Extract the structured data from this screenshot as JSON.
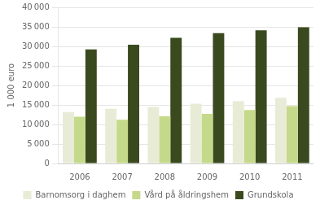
{
  "chart_data": {
    "type": "bar",
    "ylabel": "1 000 euro",
    "categories": [
      "2006",
      "2007",
      "2008",
      "2009",
      "2010",
      "2011"
    ],
    "series": [
      {
        "name": "Barnomsorg i daghem",
        "color": "#e8ecd6",
        "values": [
          13200,
          14000,
          14500,
          15300,
          16000,
          16800
        ]
      },
      {
        "name": "Vård på åldringshem",
        "color": "#c5d98a",
        "values": [
          12000,
          11200,
          12100,
          12700,
          13700,
          14700
        ]
      },
      {
        "name": "Grundskola",
        "color": "#3a4a1e",
        "values": [
          29200,
          30400,
          32200,
          33400,
          34100,
          34900
        ]
      }
    ],
    "ylim": [
      0,
      40000
    ],
    "yticks": [
      0,
      {
        "value": 5000,
        "label": "5 000"
      },
      {
        "value": 10000,
        "label": "10 000"
      },
      {
        "value": 15000,
        "label": "15 000"
      },
      {
        "value": 20000,
        "label": "20 000"
      },
      {
        "value": 25000,
        "label": "25 000"
      },
      {
        "value": 30000,
        "label": "30 000"
      },
      {
        "value": 35000,
        "label": "35 000"
      },
      {
        "value": 40000,
        "label": "40 000"
      }
    ],
    "grid": true,
    "legend": "bottom"
  }
}
